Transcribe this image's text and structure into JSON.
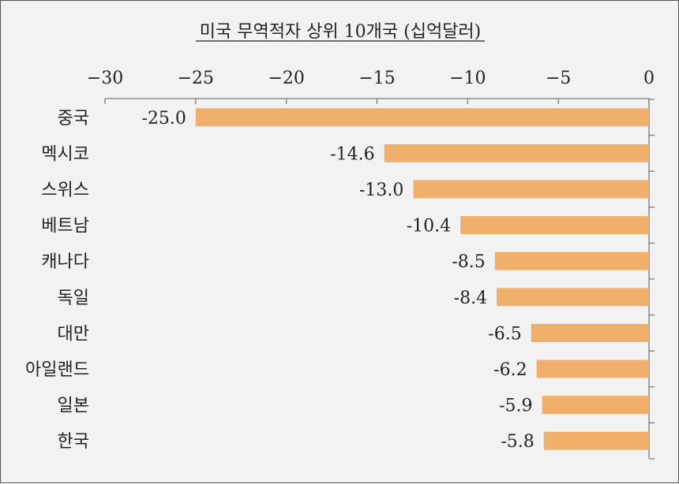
{
  "chart_data": {
    "type": "bar",
    "orientation": "horizontal",
    "title": "미국 무역적자 상위 10개국 (십억달러)",
    "categories": [
      "중국",
      "멕시코",
      "스위스",
      "베트남",
      "캐나다",
      "독일",
      "대만",
      "아일랜드",
      "일본",
      "한국"
    ],
    "values": [
      -25.0,
      -14.6,
      -13.0,
      -10.4,
      -8.5,
      -8.4,
      -6.5,
      -6.2,
      -5.9,
      -5.8
    ],
    "value_labels": [
      "-25.0",
      "-14.6",
      "-13.0",
      "-10.4",
      "-8.5",
      "-8.4",
      "-6.5",
      "-6.2",
      "-5.9",
      "-5.8"
    ],
    "xlim": [
      -30,
      0
    ],
    "x_ticks": [
      -30,
      -25,
      -20,
      -15,
      -10,
      -5,
      0
    ],
    "x_tick_labels": [
      "−30",
      "−25",
      "−20",
      "−15",
      "−10",
      "−5",
      "0"
    ],
    "x_axis_position": "top",
    "grid": false,
    "legend": "none",
    "bar_color": "#f0b06c"
  }
}
